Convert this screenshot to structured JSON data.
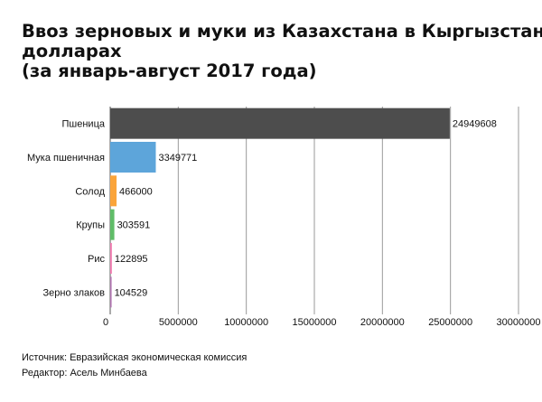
{
  "title_lines": [
    "Ввоз зерновых и муки из Казахстана в Кыргызстан в",
    "долларах",
    "(за январь-август 2017 года)"
  ],
  "chart_data": {
    "type": "bar",
    "orientation": "horizontal",
    "categories": [
      "Пшеница",
      "Мука пшеничная",
      "Солод",
      "Крупы",
      "Рис",
      "Зерно злаков"
    ],
    "values": [
      24949608,
      3349771,
      466000,
      303591,
      122895,
      104529
    ],
    "colors": [
      "#4d4d4d",
      "#5da5da",
      "#faa43a",
      "#60bd68",
      "#f17cb0",
      "#b276b2"
    ],
    "xlim": [
      0,
      30000000
    ],
    "xticks": [
      0,
      5000000,
      10000000,
      15000000,
      20000000,
      25000000,
      30000000
    ],
    "xtick_labels": [
      "0",
      "5000000",
      "10000000",
      "15000000",
      "20000000",
      "25000000",
      "30000000"
    ],
    "grid": true,
    "legend": "none"
  },
  "footer": {
    "source": "Источник: Евразийская экономическая комиссия",
    "editor": "Редактор: Асель Минбаева"
  }
}
